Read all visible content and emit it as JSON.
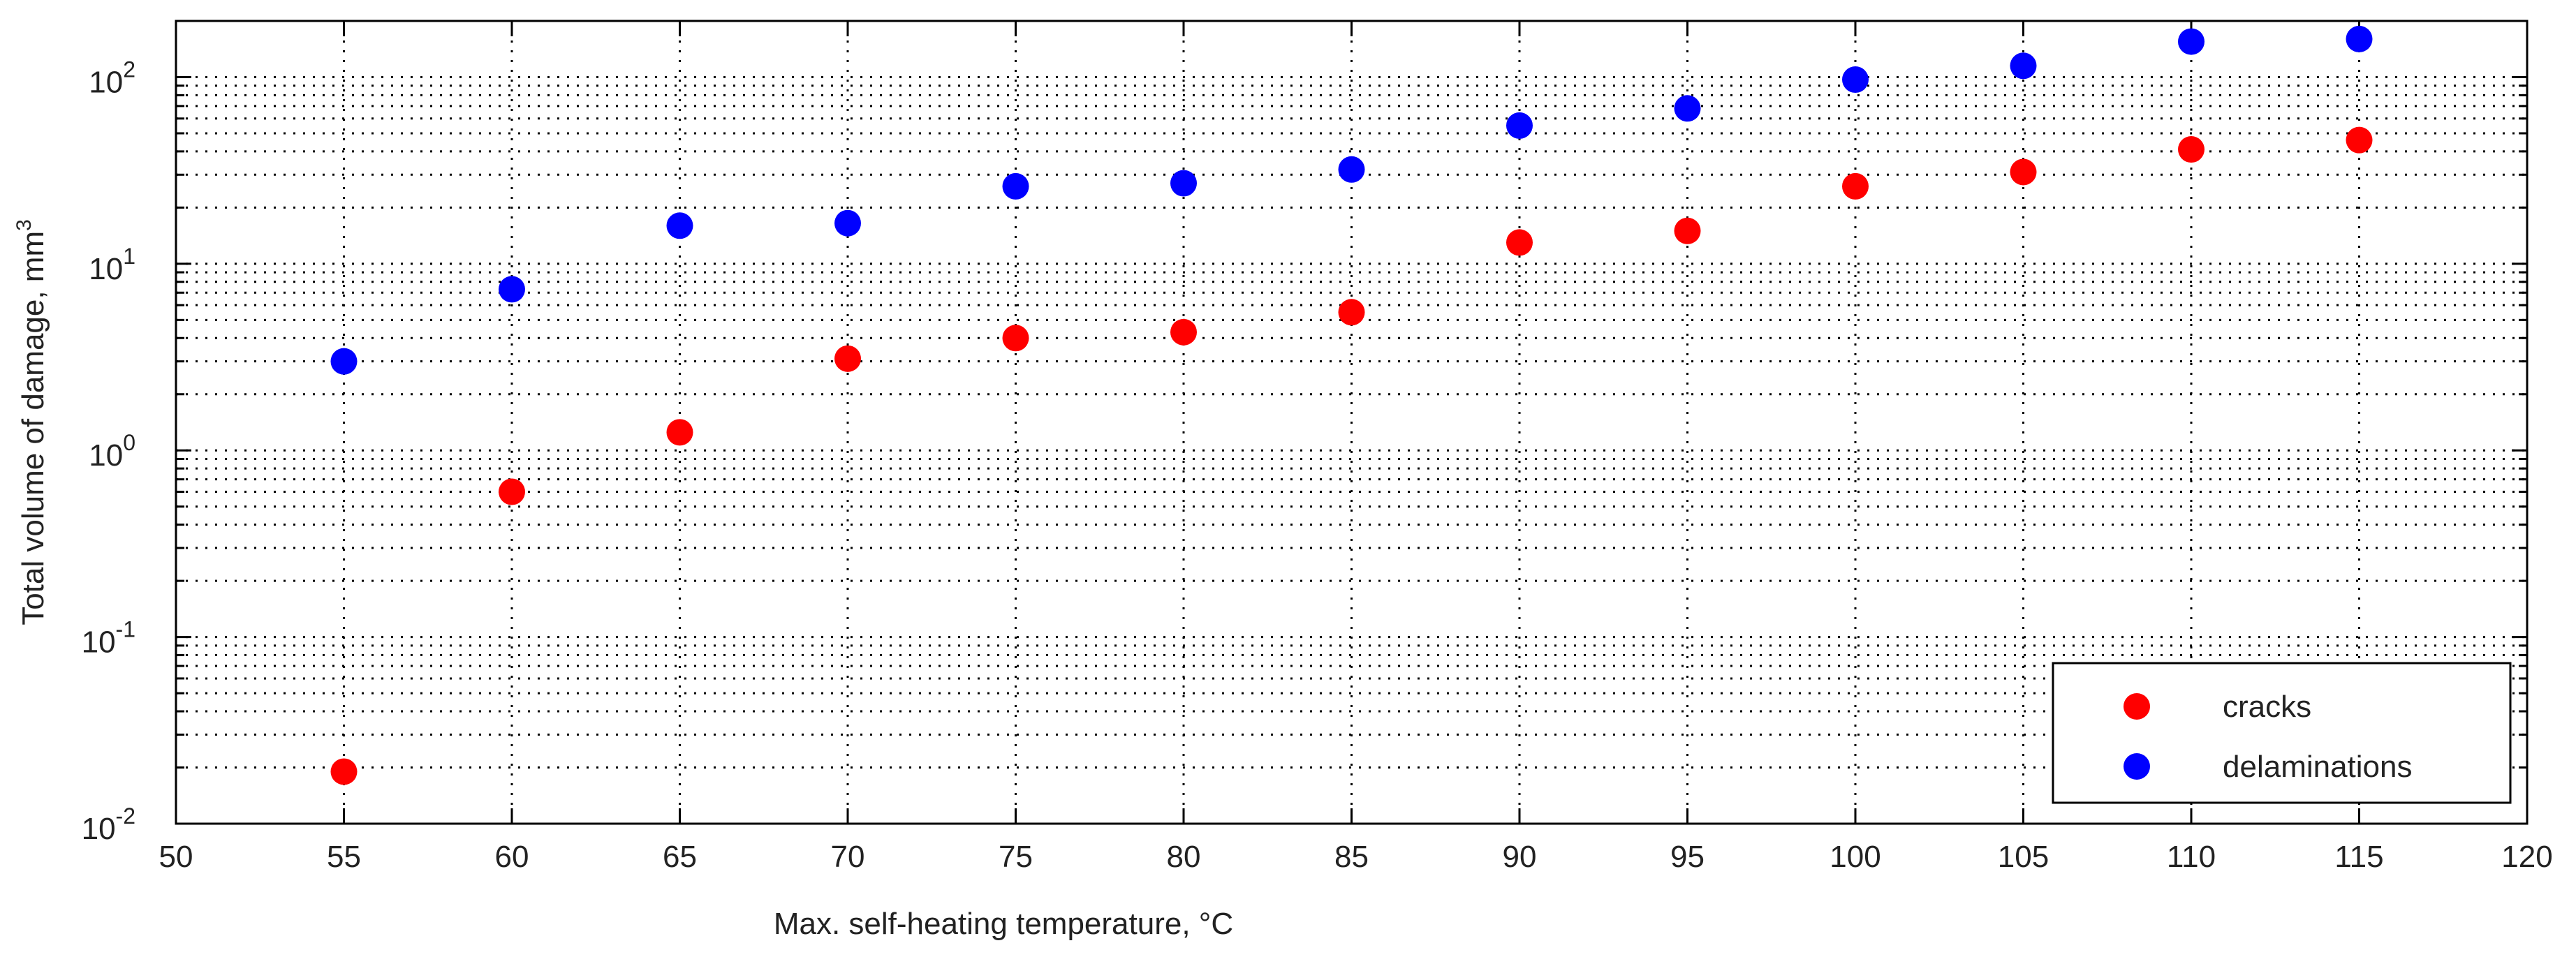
{
  "chart_data": {
    "type": "scatter",
    "title": "",
    "xlabel": "Max. self-heating temperature, °C",
    "ylabel": "Total volume of damage, mm",
    "ylabel_superscript": "3",
    "xlim": [
      50,
      120
    ],
    "ylim": [
      0.01,
      200
    ],
    "yscale": "log",
    "grid": true,
    "legend_position": "bottom-right",
    "x_ticks": [
      50,
      55,
      60,
      65,
      70,
      75,
      80,
      85,
      90,
      95,
      100,
      105,
      110,
      115,
      120
    ],
    "y_ticks": [
      {
        "value": 0.01,
        "base": "10",
        "exp": "-2"
      },
      {
        "value": 0.1,
        "base": "10",
        "exp": "-1"
      },
      {
        "value": 1,
        "base": "10",
        "exp": "0"
      },
      {
        "value": 10,
        "base": "10",
        "exp": "1"
      },
      {
        "value": 100,
        "base": "10",
        "exp": "2"
      }
    ],
    "series": [
      {
        "name": "cracks",
        "color": "#ff0000",
        "x": [
          55,
          60,
          65,
          70,
          75,
          80,
          85,
          90,
          95,
          100,
          105,
          110,
          115
        ],
        "values": [
          0.019,
          0.6,
          1.25,
          3.1,
          4.0,
          4.3,
          5.5,
          13,
          15,
          26,
          31,
          41,
          46
        ]
      },
      {
        "name": "delaminations",
        "color": "#0000ff",
        "x": [
          55,
          60,
          65,
          70,
          75,
          80,
          85,
          90,
          95,
          100,
          105,
          110,
          115
        ],
        "values": [
          3.0,
          7.3,
          16,
          16.5,
          26,
          27,
          32,
          55,
          68,
          97,
          115,
          155,
          160
        ]
      }
    ]
  }
}
